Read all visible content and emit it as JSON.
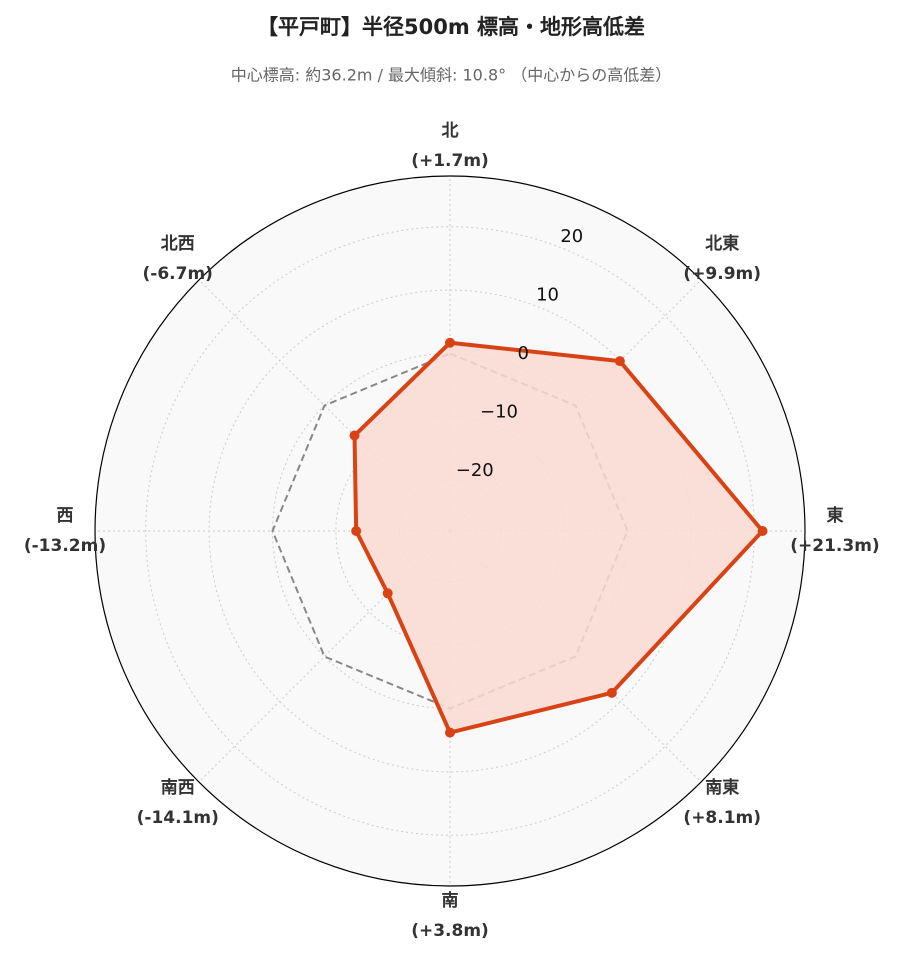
{
  "chart_data": {
    "type": "radar",
    "title": "【平戸町】半径500m 標高・地形高低差",
    "subtitle": "中心標高: 約36.2m / 最大傾斜: 10.8° （中心からの高低差）",
    "categories": [
      "北",
      "北東",
      "東",
      "南東",
      "南",
      "南西",
      "西",
      "北西"
    ],
    "values": [
      1.7,
      9.9,
      21.3,
      8.1,
      3.8,
      -14.1,
      -13.2,
      -6.7
    ],
    "value_labels": [
      "(+1.7m)",
      "(+9.9m)",
      "(+21.3m)",
      "(+8.1m)",
      "(+3.8m)",
      "(-14.1m)",
      "(-13.2m)",
      "(-6.7m)"
    ],
    "color": "#d84315",
    "fill": "#fadbd2",
    "rlim": [
      -28,
      28
    ],
    "rticks": [
      {
        "value": -20,
        "label": "−20"
      },
      {
        "value": -10,
        "label": "−10"
      },
      0,
      10,
      20
    ],
    "reference_line": 0,
    "reference_color": "#888888",
    "grid": true
  }
}
